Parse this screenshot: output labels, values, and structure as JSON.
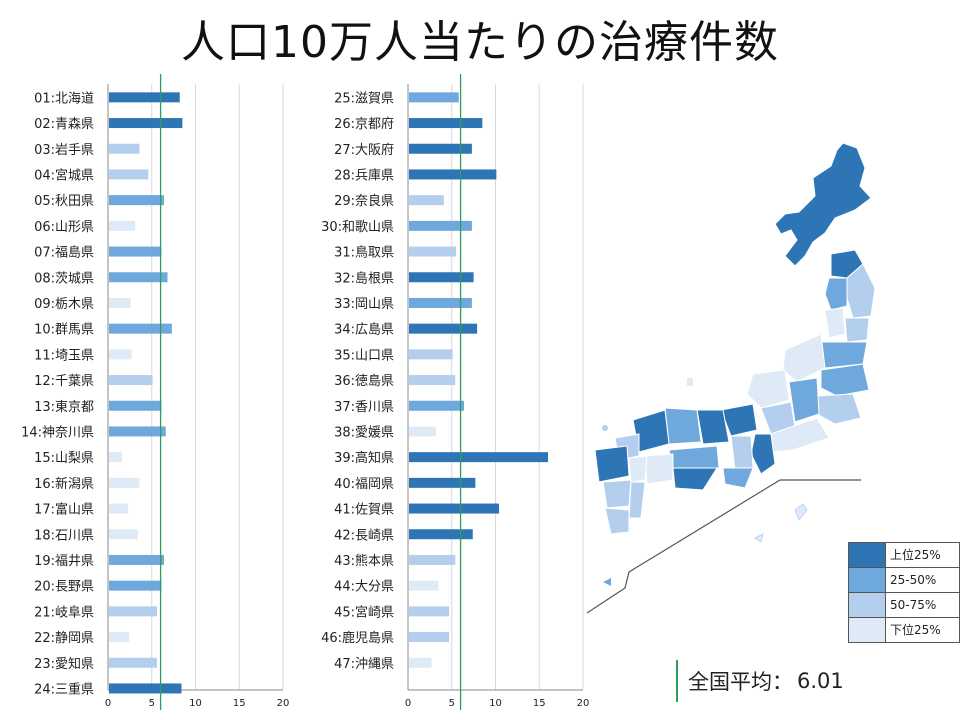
{
  "title": "人口10万人当たりの治療件数",
  "legend": [
    {
      "label": "上位25%",
      "color": "#2e75b6"
    },
    {
      "label": "25-50%",
      "color": "#6fa8dc"
    },
    {
      "label": "50-75%",
      "color": "#b4cfee"
    },
    {
      "label": "下位25%",
      "color": "#deebf7"
    }
  ],
  "average": {
    "label": "全国平均：",
    "value": "6.01"
  },
  "chart_data": [
    {
      "type": "bar",
      "orientation": "horizontal",
      "xlim": [
        0,
        20
      ],
      "xticks": [
        0,
        5,
        10,
        15,
        20
      ],
      "reference_line": 6.01,
      "categories": [
        "01:北海道",
        "02:青森県",
        "03:岩手県",
        "04:宮城県",
        "05:秋田県",
        "06:山形県",
        "07:福島県",
        "08:茨城県",
        "09:栃木県",
        "10:群馬県",
        "11:埼玉県",
        "12:千葉県",
        "13:東京都",
        "14:神奈川県",
        "15:山梨県",
        "16:新潟県",
        "17:富山県",
        "18:石川県",
        "19:福井県",
        "20:長野県",
        "21:岐阜県",
        "22:静岡県",
        "23:愛知県",
        "24:三重県"
      ],
      "values": [
        8.2,
        8.5,
        3.6,
        4.6,
        6.4,
        3.1,
        6.1,
        6.8,
        2.6,
        7.3,
        2.7,
        5.1,
        6.1,
        6.6,
        1.6,
        3.6,
        2.3,
        3.4,
        6.4,
        6.1,
        5.6,
        2.4,
        5.6,
        8.4
      ],
      "tiers": [
        0,
        0,
        2,
        2,
        1,
        3,
        1,
        1,
        3,
        1,
        3,
        2,
        1,
        1,
        3,
        3,
        3,
        3,
        1,
        1,
        2,
        3,
        2,
        0
      ]
    },
    {
      "type": "bar",
      "orientation": "horizontal",
      "xlim": [
        0,
        20
      ],
      "xticks": [
        0,
        5,
        10,
        15,
        20
      ],
      "reference_line": 6.01,
      "categories": [
        "25:滋賀県",
        "26:京都府",
        "27:大阪府",
        "28:兵庫県",
        "29:奈良県",
        "30:和歌山県",
        "31:鳥取県",
        "32:島根県",
        "33:岡山県",
        "34:広島県",
        "35:山口県",
        "36:徳島県",
        "37:香川県",
        "38:愛媛県",
        "39:高知県",
        "40:福岡県",
        "41:佐賀県",
        "42:長崎県",
        "43:熊本県",
        "44:大分県",
        "45:宮崎県",
        "46:鹿児島県",
        "47:沖縄県"
      ],
      "values": [
        5.8,
        8.5,
        7.3,
        10.1,
        4.1,
        7.3,
        5.5,
        7.5,
        7.3,
        7.9,
        5.1,
        5.4,
        6.4,
        3.2,
        16.0,
        7.7,
        10.4,
        7.4,
        5.4,
        3.5,
        4.7,
        4.7,
        2.7
      ],
      "tiers": [
        1,
        0,
        0,
        0,
        2,
        1,
        2,
        0,
        1,
        0,
        2,
        2,
        1,
        3,
        0,
        0,
        0,
        0,
        2,
        3,
        2,
        2,
        3
      ]
    }
  ]
}
